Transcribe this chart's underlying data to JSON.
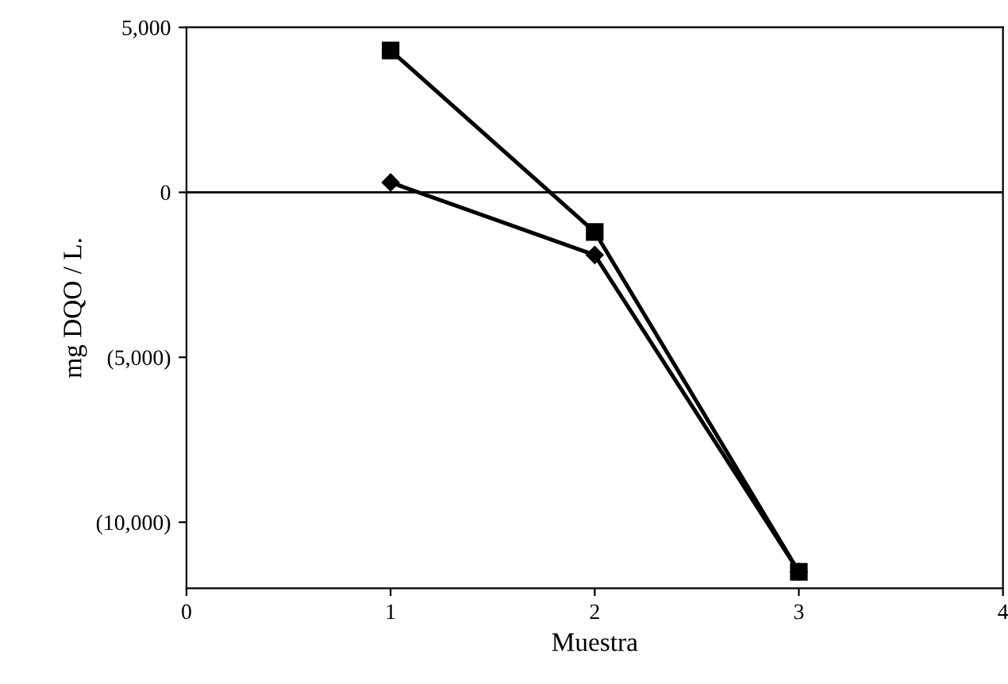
{
  "chart_data": {
    "type": "line",
    "xlabel": "Muestra",
    "ylabel": "mg DQO / L.",
    "x": [
      1,
      2,
      3
    ],
    "series": [
      {
        "color": "#000000",
        "values": [
          4300,
          -1200,
          -11500
        ],
        "marker": "square"
      },
      {
        "color": "#000000",
        "values": [
          300,
          -1900,
          -11500
        ],
        "marker": "diamond"
      }
    ],
    "xlim": [
      0,
      4
    ],
    "xticks": [
      0,
      1,
      2,
      3,
      4
    ],
    "ylim": [
      -12000,
      5000
    ],
    "yticks": [
      {
        "value": 5000,
        "label": "5,000"
      },
      {
        "value": 0,
        "label": "0"
      },
      {
        "value": -5000,
        "label": "(5,000)"
      },
      {
        "value": -10000,
        "label": "(10,000)"
      }
    ],
    "ref_lines": [
      {
        "axis": "y",
        "value": 0,
        "color": "#000000",
        "line_style": "solid"
      }
    ],
    "grid": false,
    "legend": false,
    "line_style": "solid"
  }
}
